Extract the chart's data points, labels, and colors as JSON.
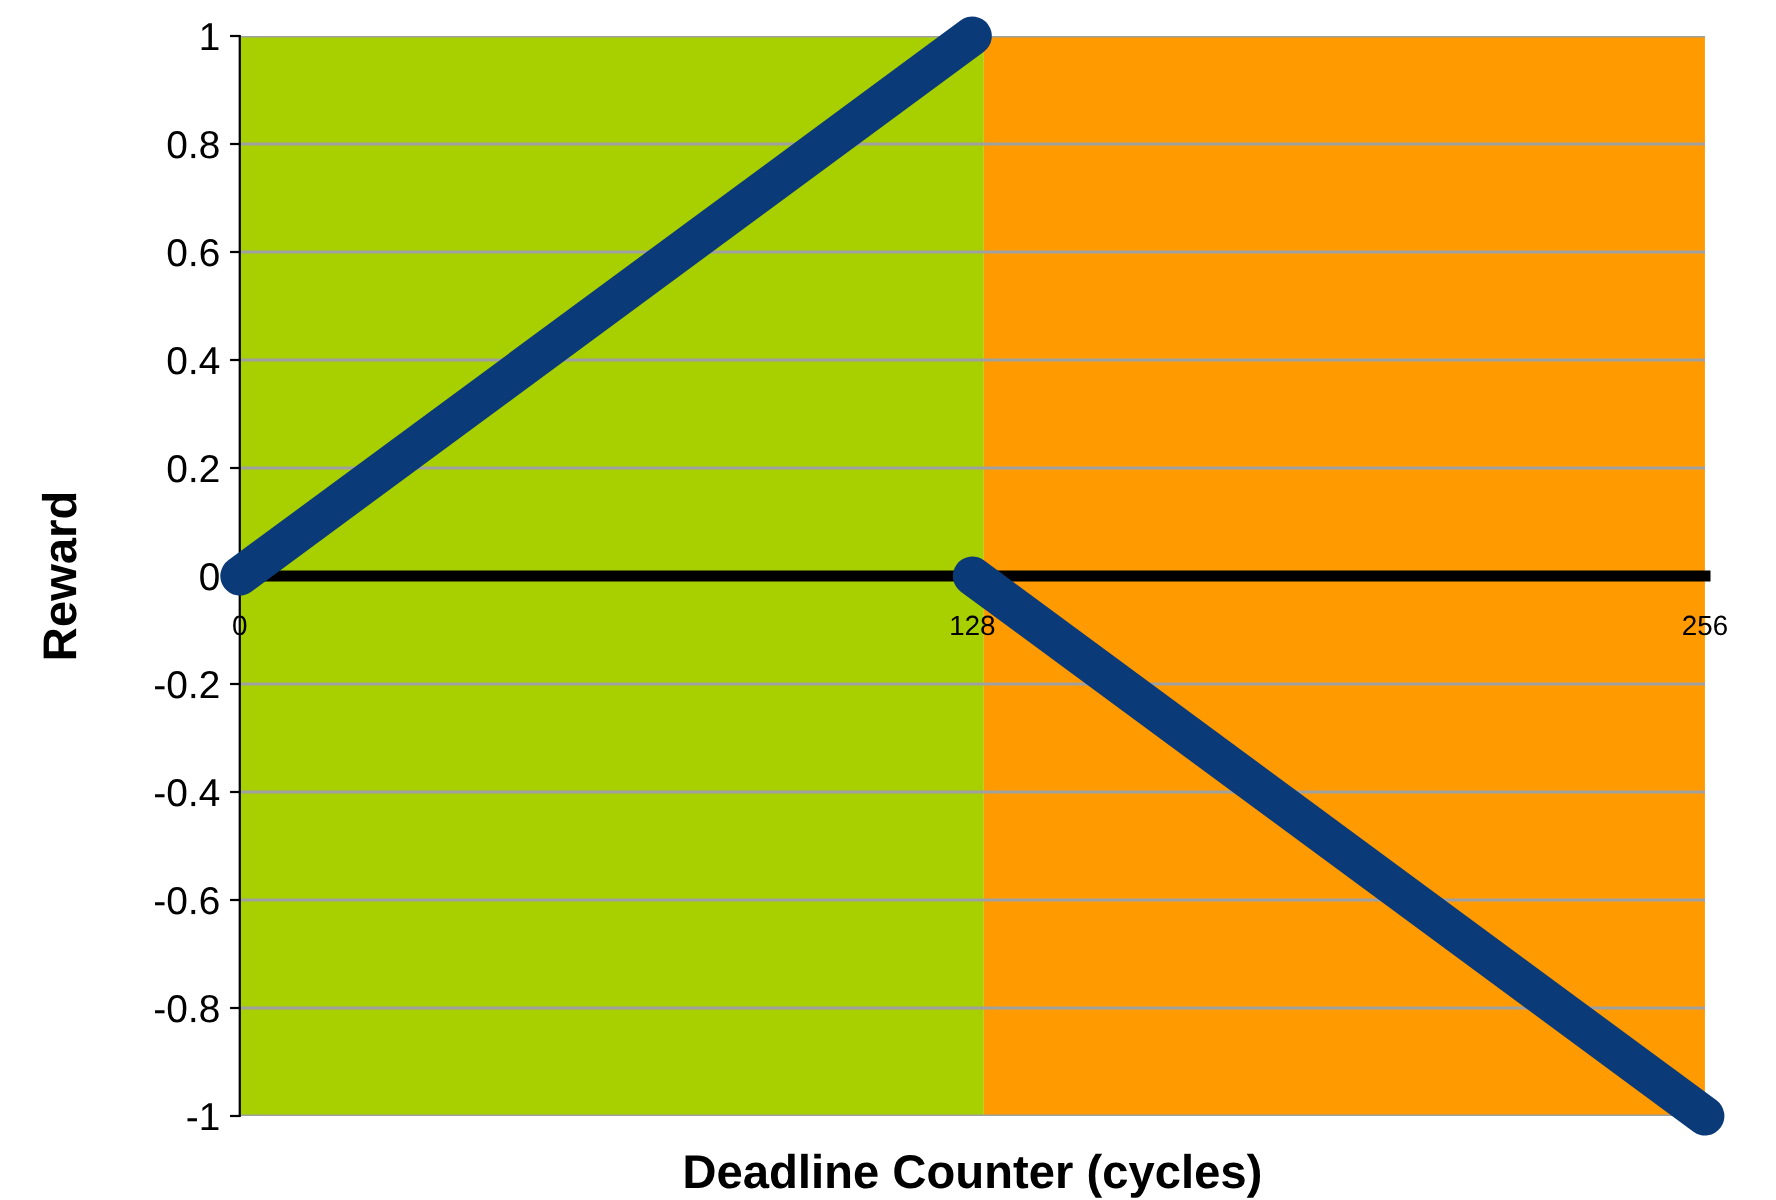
{
  "chart_data": {
    "type": "line",
    "xlabel": "Deadline Counter (cycles)",
    "ylabel": "Reward",
    "series": [
      {
        "color": "#0b3a78",
        "x": [
          0,
          128
        ],
        "values": [
          0,
          1
        ]
      },
      {
        "color": "#0b3a78",
        "x": [
          128,
          256
        ],
        "values": [
          0,
          -1
        ]
      }
    ],
    "xlim": [
      0,
      256
    ],
    "xticks": [
      0,
      128,
      256
    ],
    "ylim": [
      -1,
      1
    ],
    "yticks": [
      -1,
      -0.8,
      -0.6,
      -0.4,
      -0.2,
      0,
      0.2,
      0.4,
      0.6,
      0.8,
      1
    ],
    "grid": "y",
    "line_style": "solid",
    "bands": [
      {
        "axis": "x",
        "from": 0,
        "to": 130,
        "color": "#a8d000"
      },
      {
        "axis": "x",
        "from": 130,
        "to": 256,
        "color": "#ff9a00"
      }
    ]
  }
}
